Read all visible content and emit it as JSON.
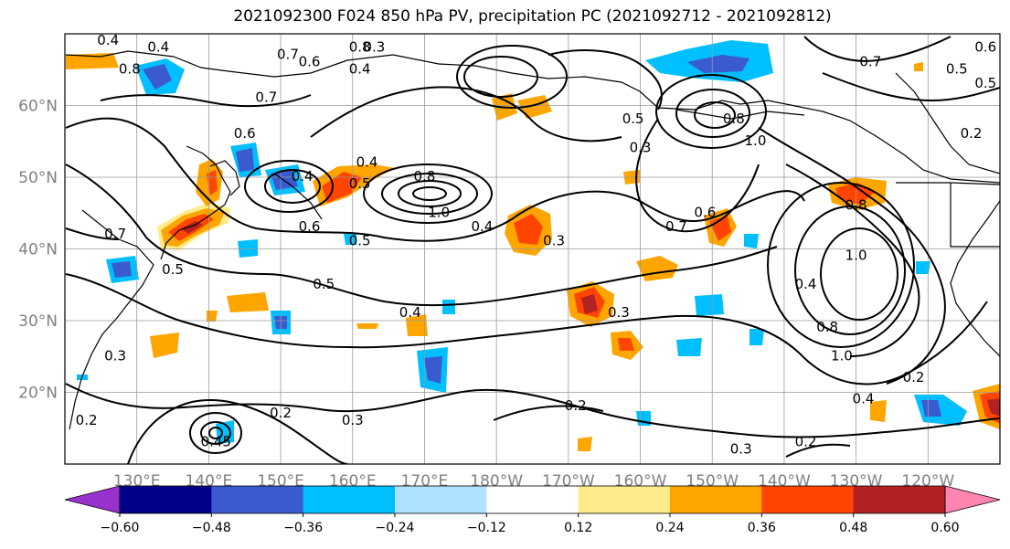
{
  "title": "2021092300 F024 850 hPa PV, precipitation PC (2021092712 - 2021092812)",
  "map": {
    "lon_range": [
      120,
      250
    ],
    "lat_range": [
      10,
      70
    ],
    "lat_ticks": [
      {
        "value": 20,
        "label": "20°N"
      },
      {
        "value": 30,
        "label": "30°N"
      },
      {
        "value": 40,
        "label": "40°N"
      },
      {
        "value": 50,
        "label": "50°N"
      },
      {
        "value": 60,
        "label": "60°N"
      }
    ],
    "lon_ticks": [
      {
        "value": 130,
        "label": "130°E"
      },
      {
        "value": 140,
        "label": "140°E"
      },
      {
        "value": 150,
        "label": "150°E"
      },
      {
        "value": 160,
        "label": "160°E"
      },
      {
        "value": 170,
        "label": "170°E"
      },
      {
        "value": 180,
        "label": "180°W"
      },
      {
        "value": 190,
        "label": "170°W"
      },
      {
        "value": 200,
        "label": "160°W"
      },
      {
        "value": 210,
        "label": "150°W"
      },
      {
        "value": 220,
        "label": "140°W"
      },
      {
        "value": 230,
        "label": "130°W"
      },
      {
        "value": 240,
        "label": "120°W"
      }
    ],
    "grid": true,
    "contour_labels": [
      {
        "text": "0.4",
        "lon": 126,
        "lat": 69
      },
      {
        "text": "0.4",
        "lon": 133,
        "lat": 68
      },
      {
        "text": "0.8",
        "lon": 129,
        "lat": 65
      },
      {
        "text": "0.7",
        "lon": 151,
        "lat": 67
      },
      {
        "text": "0.6",
        "lon": 154,
        "lat": 66
      },
      {
        "text": "0.4",
        "lon": 161,
        "lat": 65
      },
      {
        "text": "0.7",
        "lon": 148,
        "lat": 61
      },
      {
        "text": "0.6",
        "lon": 145,
        "lat": 56
      },
      {
        "text": "0.4",
        "lon": 162,
        "lat": 52
      },
      {
        "text": "0.8",
        "lon": 170,
        "lat": 50
      },
      {
        "text": "1.0",
        "lon": 172,
        "lat": 45
      },
      {
        "text": "0.6",
        "lon": 154,
        "lat": 43
      },
      {
        "text": "0.5",
        "lon": 161,
        "lat": 41
      },
      {
        "text": "0.4",
        "lon": 178,
        "lat": 43
      },
      {
        "text": "0.3",
        "lon": 188,
        "lat": 41
      },
      {
        "text": "0.7",
        "lon": 127,
        "lat": 42
      },
      {
        "text": "0.5",
        "lon": 135,
        "lat": 37
      },
      {
        "text": "0.5",
        "lon": 156,
        "lat": 35
      },
      {
        "text": "0.4",
        "lon": 168,
        "lat": 31
      },
      {
        "text": "0.3",
        "lon": 197,
        "lat": 31
      },
      {
        "text": "0.3",
        "lon": 127,
        "lat": 25
      },
      {
        "text": "0.2",
        "lon": 123,
        "lat": 16
      },
      {
        "text": "0.3",
        "lon": 160,
        "lat": 16
      },
      {
        "text": "0.2",
        "lon": 150,
        "lat": 17
      },
      {
        "text": "0.2",
        "lon": 191,
        "lat": 18
      },
      {
        "text": "0.45",
        "lon": 141,
        "lat": 13
      },
      {
        "text": "0.3",
        "lon": 214,
        "lat": 12
      },
      {
        "text": "0.2",
        "lon": 223,
        "lat": 13
      },
      {
        "text": "0.7",
        "lon": 205,
        "lat": 43
      },
      {
        "text": "0.6",
        "lon": 209,
        "lat": 45
      },
      {
        "text": "0.8",
        "lon": 213,
        "lat": 58
      },
      {
        "text": "1.0",
        "lon": 216,
        "lat": 55
      },
      {
        "text": "0.8",
        "lon": 230,
        "lat": 46
      },
      {
        "text": "1.0",
        "lon": 230,
        "lat": 39
      },
      {
        "text": "0.8",
        "lon": 226,
        "lat": 29
      },
      {
        "text": "1.0",
        "lon": 228,
        "lat": 25
      },
      {
        "text": "0.4",
        "lon": 223,
        "lat": 35
      },
      {
        "text": "0.4",
        "lon": 231,
        "lat": 19
      },
      {
        "text": "0.2",
        "lon": 238,
        "lat": 22
      },
      {
        "text": "0.2",
        "lon": 246,
        "lat": 56
      },
      {
        "text": "0.7",
        "lon": 232,
        "lat": 66
      },
      {
        "text": "0.6",
        "lon": 248,
        "lat": 68
      },
      {
        "text": "0.5",
        "lon": 244,
        "lat": 65
      },
      {
        "text": "0.5",
        "lon": 248,
        "lat": 63
      },
      {
        "text": "0.8",
        "lon": 161,
        "lat": 68
      },
      {
        "text": "0.3",
        "lon": 163,
        "lat": 68
      },
      {
        "text": "0.3",
        "lon": 200,
        "lat": 54
      },
      {
        "text": "0.5",
        "lon": 199,
        "lat": 58
      },
      {
        "text": "0.5",
        "lon": 161,
        "lat": 49
      },
      {
        "text": "0.4",
        "lon": 153,
        "lat": 50
      }
    ]
  },
  "colorbar": {
    "ticks": [
      "−0.60",
      "−0.48",
      "−0.36",
      "−0.24",
      "−0.12",
      "0.12",
      "0.24",
      "0.36",
      "0.48",
      "0.60"
    ],
    "colors": [
      "#9932cc",
      "#00008b",
      "#3a5bcf",
      "#00bfff",
      "#b0e2ff",
      "#ffffff",
      "#ffeb8a",
      "#ffa500",
      "#ff4500",
      "#b22222",
      "#ff85b0"
    ]
  }
}
